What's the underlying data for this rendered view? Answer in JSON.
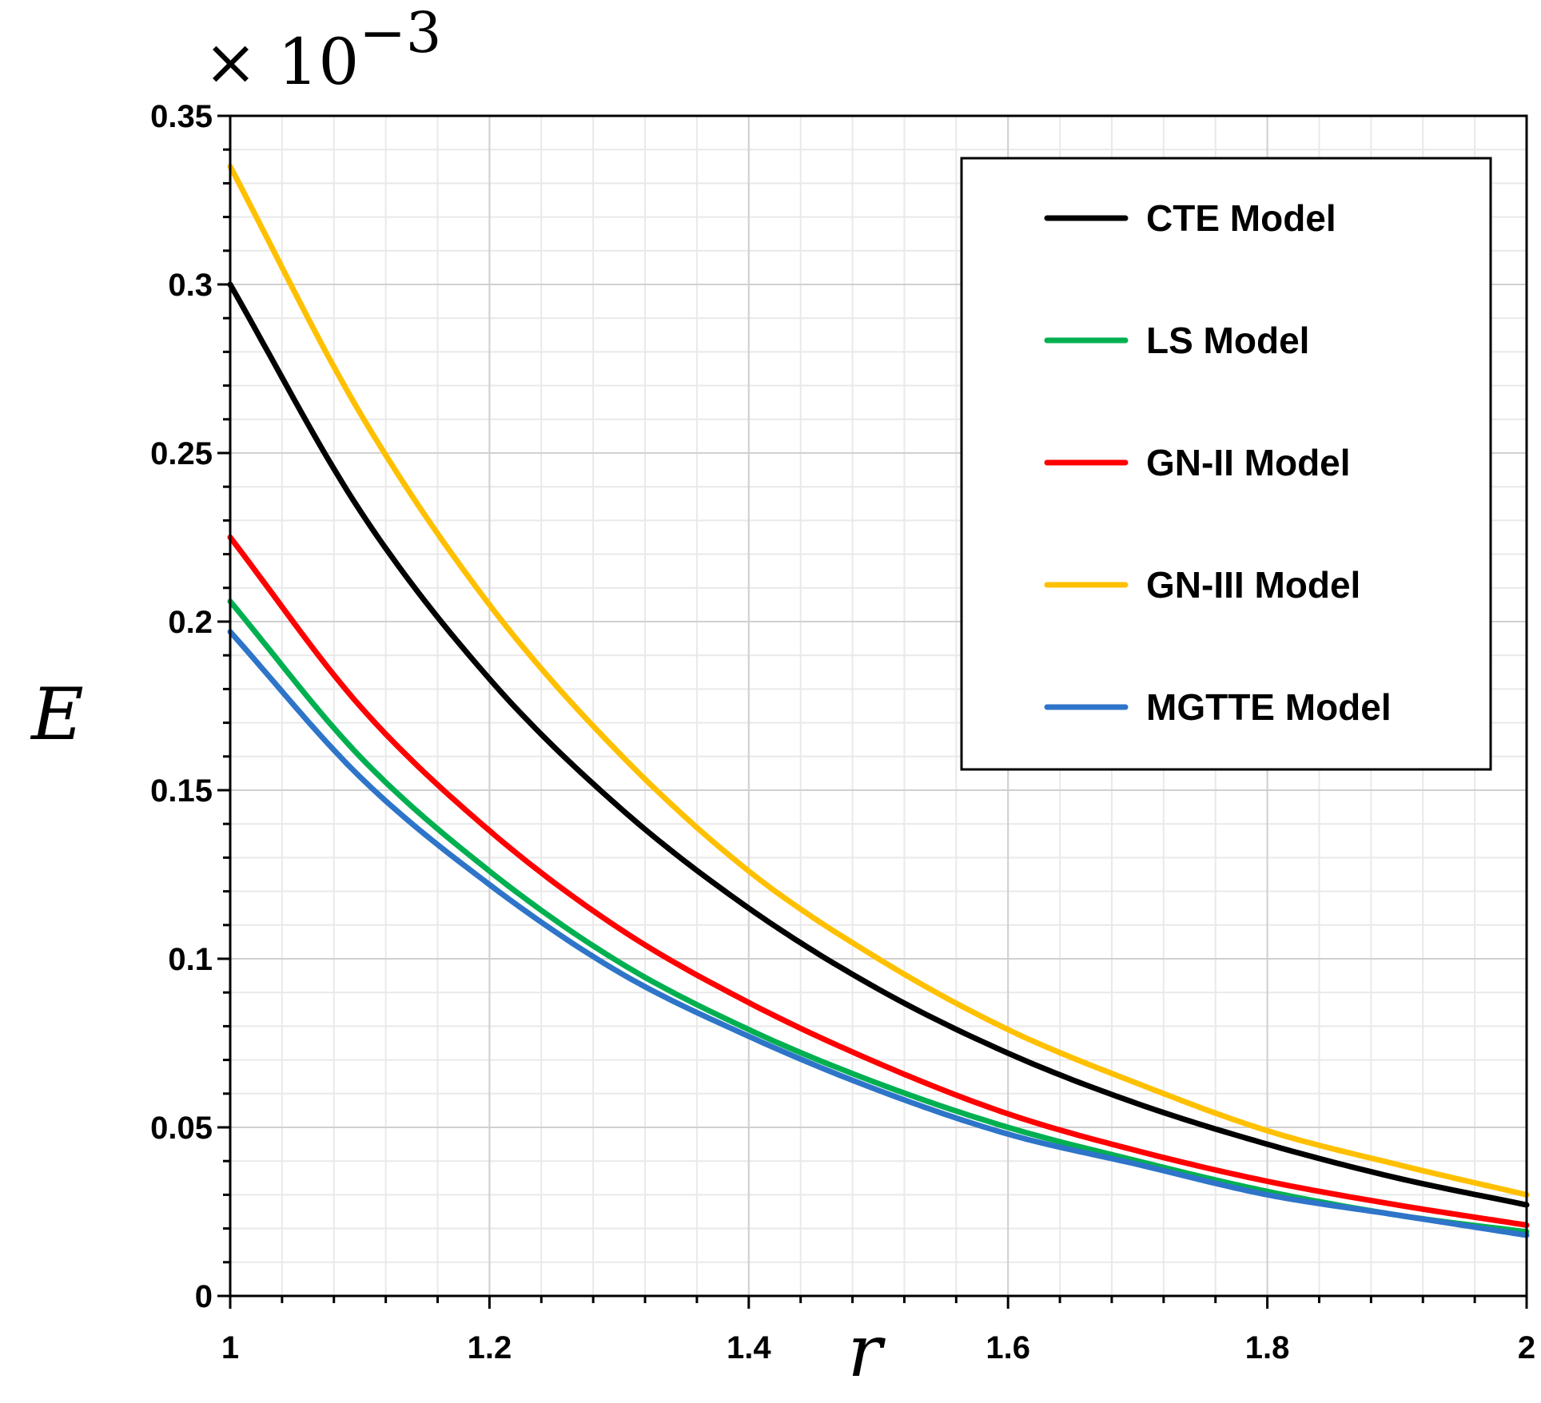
{
  "chart_data": {
    "type": "line",
    "title": "",
    "xlabel": "r",
    "ylabel": "E",
    "y_multiplier": "× 10",
    "y_multiplier_exponent": "−3",
    "xlim": [
      1,
      2
    ],
    "ylim": [
      0,
      0.35
    ],
    "x_ticks": [
      1,
      1.2,
      1.4,
      1.6,
      1.8,
      2
    ],
    "x_tick_labels": [
      "1",
      "1.2",
      "1.4",
      "1.6",
      "1.8",
      "2"
    ],
    "y_ticks": [
      0,
      0.05,
      0.1,
      0.15,
      0.2,
      0.25,
      0.3,
      0.35
    ],
    "y_tick_labels": [
      "0",
      "0.05",
      "0.1",
      "0.15",
      "0.2",
      "0.25",
      "0.3",
      "0.35"
    ],
    "grid": true,
    "legend_position": "top-right",
    "x": [
      1.0,
      1.1,
      1.2,
      1.3,
      1.4,
      1.5,
      1.6,
      1.7,
      1.8,
      1.9,
      2.0
    ],
    "series": [
      {
        "name": "CTE Model",
        "color": "#000000",
        "values": [
          0.3,
          0.233,
          0.183,
          0.145,
          0.115,
          0.091,
          0.072,
          0.057,
          0.045,
          0.035,
          0.027
        ]
      },
      {
        "name": "LS Model",
        "color": "#00b050",
        "values": [
          0.206,
          0.16,
          0.126,
          0.099,
          0.079,
          0.063,
          0.05,
          0.04,
          0.031,
          0.024,
          0.019
        ]
      },
      {
        "name": "GN-II Model",
        "color": "#ff0000",
        "values": [
          0.225,
          0.175,
          0.138,
          0.109,
          0.087,
          0.069,
          0.054,
          0.043,
          0.034,
          0.027,
          0.021
        ]
      },
      {
        "name": "GN-III Model",
        "color": "#ffc000",
        "values": [
          0.335,
          0.262,
          0.205,
          0.161,
          0.126,
          0.1,
          0.079,
          0.063,
          0.049,
          0.039,
          0.03
        ]
      },
      {
        "name": "MGTTE Model",
        "color": "#2e75c9",
        "values": [
          0.197,
          0.154,
          0.122,
          0.096,
          0.077,
          0.061,
          0.048,
          0.039,
          0.03,
          0.024,
          0.018
        ]
      }
    ]
  }
}
